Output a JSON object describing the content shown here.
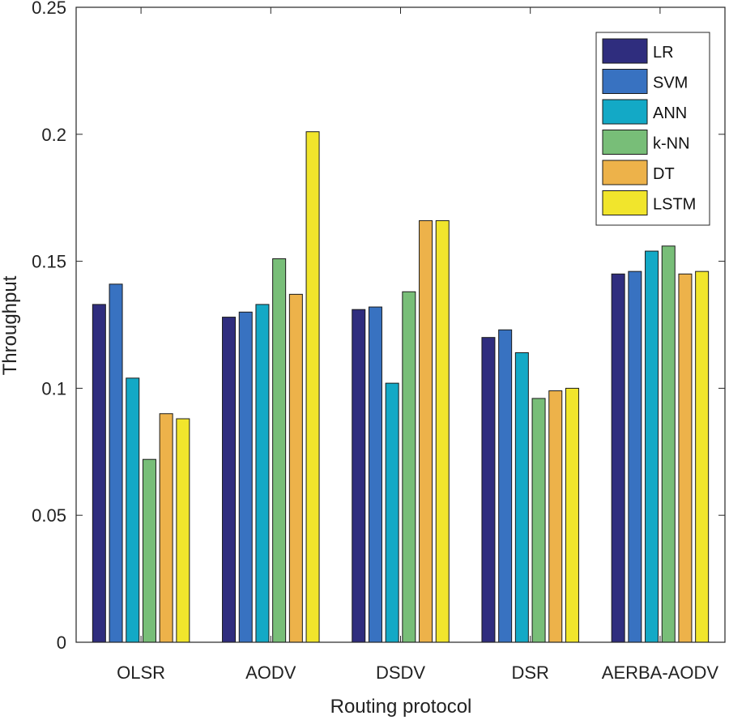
{
  "chart_data": {
    "type": "bar",
    "title": "",
    "xlabel": "Routing protocol",
    "ylabel": "Throughput",
    "ylim": [
      0,
      0.25
    ],
    "yticks": [
      0,
      0.05,
      0.1,
      0.15,
      0.2,
      0.25
    ],
    "ytick_labels": [
      "0",
      "0.05",
      "0.1",
      "0.15",
      "0.2",
      "0.25"
    ],
    "grid": false,
    "legend_position": "top-right",
    "categories": [
      "OLSR",
      "AODV",
      "DSDV",
      "DSR",
      "AERBA-AODV"
    ],
    "series": [
      {
        "name": "LR",
        "color": "#2F2D7E",
        "values": [
          0.133,
          0.128,
          0.131,
          0.12,
          0.145
        ]
      },
      {
        "name": "SVM",
        "color": "#3872C1",
        "values": [
          0.141,
          0.13,
          0.132,
          0.123,
          0.146
        ]
      },
      {
        "name": "ANN",
        "color": "#13A9C6",
        "values": [
          0.104,
          0.133,
          0.102,
          0.114,
          0.154
        ]
      },
      {
        "name": "k-NN",
        "color": "#78BE78",
        "values": [
          0.072,
          0.151,
          0.138,
          0.096,
          0.156
        ]
      },
      {
        "name": "DT",
        "color": "#EDB24A",
        "values": [
          0.09,
          0.137,
          0.166,
          0.099,
          0.145
        ]
      },
      {
        "name": "LSTM",
        "color": "#F1E52C",
        "values": [
          0.088,
          0.201,
          0.166,
          0.1,
          0.146
        ]
      }
    ]
  }
}
